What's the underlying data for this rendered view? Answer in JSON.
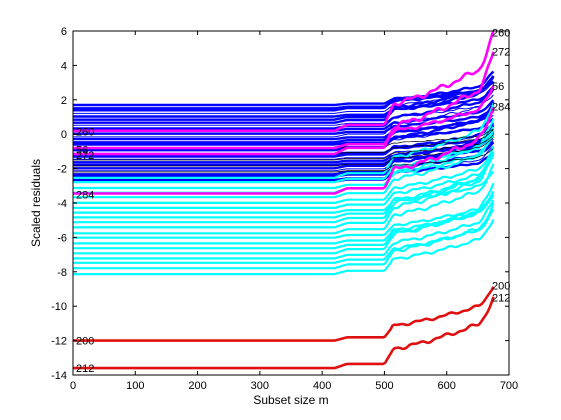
{
  "chart_data": {
    "type": "line",
    "title": "",
    "xlabel": "Subset size m",
    "ylabel": "Scaled residuals",
    "xlim": [
      0,
      700
    ],
    "ylim": [
      -14,
      6
    ],
    "xticks": [
      0,
      100,
      200,
      300,
      400,
      500,
      600,
      700
    ],
    "yticks": [
      -14,
      -12,
      -10,
      -8,
      -6,
      -4,
      -2,
      0,
      2,
      4,
      6
    ],
    "grid": false,
    "legend": "none",
    "colors": {
      "normal_units": "#0000ff",
      "normal_units_light": "#00ffff",
      "highlighted_units": "#ff00ff",
      "outliers": "#e01010",
      "black": "#000000"
    },
    "x_range": [
      0,
      675
    ],
    "groups": [
      {
        "group": "blue",
        "count": 28,
        "y_start_range": [
          -2.8,
          1.7
        ]
      },
      {
        "group": "cyan",
        "count": 20,
        "y_start_range": [
          -8.1,
          -2.5
        ]
      }
    ],
    "series": [
      {
        "label": "260",
        "group": "magenta",
        "y_start": 0.2,
        "y_end": 5.9
      },
      {
        "label": "272",
        "group": "magenta",
        "y_start": -1.15,
        "y_end": 4.8
      },
      {
        "label": "56",
        "group": "magenta",
        "y_start": -0.8,
        "y_end": 2.8
      },
      {
        "label": "284",
        "group": "magenta",
        "y_start": -3.45,
        "y_end": 1.6
      },
      {
        "label": "200",
        "group": "red",
        "y_start": -12.0,
        "y_end": -8.8
      },
      {
        "label": "212",
        "group": "red",
        "y_start": -13.6,
        "y_end": -9.5
      }
    ],
    "left_labels": [
      {
        "text": "260",
        "y": 0.15
      },
      {
        "text": "272",
        "y": -1.2
      },
      {
        "text": "56",
        "y": -0.9
      },
      {
        "text": "284",
        "y": -3.5
      },
      {
        "text": "200",
        "y": -12.0
      },
      {
        "text": "212",
        "y": -13.6
      }
    ],
    "right_labels": [
      {
        "text": "260",
        "y": 5.9
      },
      {
        "text": "272",
        "y": 4.8
      },
      {
        "text": "56",
        "y": 2.8
      },
      {
        "text": "284",
        "y": 1.6
      },
      {
        "text": "200",
        "y": -8.8
      },
      {
        "text": "212",
        "y": -9.5
      }
    ]
  }
}
